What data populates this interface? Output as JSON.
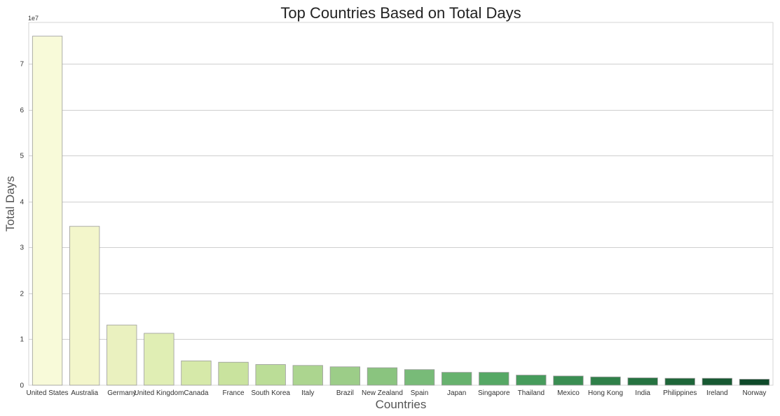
{
  "chart_data": {
    "type": "bar",
    "title": "Top Countries Based on Total Days",
    "xlabel": "Countries",
    "ylabel": "Total Days",
    "y_offset_label": "1e7",
    "y_scale": 10000000,
    "ylim": [
      0,
      7.9
    ],
    "yticks": [
      0,
      1,
      2,
      3,
      4,
      5,
      6,
      7
    ],
    "grid": "horizontal",
    "legend": "none",
    "categories": [
      "United States",
      "Australia",
      "Germany",
      "United Kingdom",
      "Canada",
      "France",
      "South Korea",
      "Italy",
      "Brazil",
      "New Zealand",
      "Spain",
      "Japan",
      "Singapore",
      "Thailand",
      "Mexico",
      "Hong Kong",
      "India",
      "Philippines",
      "Ireland",
      "Norway"
    ],
    "values": [
      76000000,
      34600000,
      13100000,
      11300000,
      5300000,
      5000000,
      4500000,
      4300000,
      4000000,
      3800000,
      3400000,
      2800000,
      2800000,
      2200000,
      2000000,
      1800000,
      1600000,
      1500000,
      1500000,
      1300000
    ],
    "colors": [
      "#f8fad9",
      "#f3f6cb",
      "#eaf1bf",
      "#e0eeb4",
      "#d6e9a9",
      "#c9e39e",
      "#bbdd97",
      "#acd58f",
      "#9ccd88",
      "#8ac47f",
      "#78bb78",
      "#67b26e",
      "#56a865",
      "#479c5c",
      "#3a8e52",
      "#2f8049",
      "#267341",
      "#1e6639",
      "#175932",
      "#0f4a2a"
    ]
  }
}
